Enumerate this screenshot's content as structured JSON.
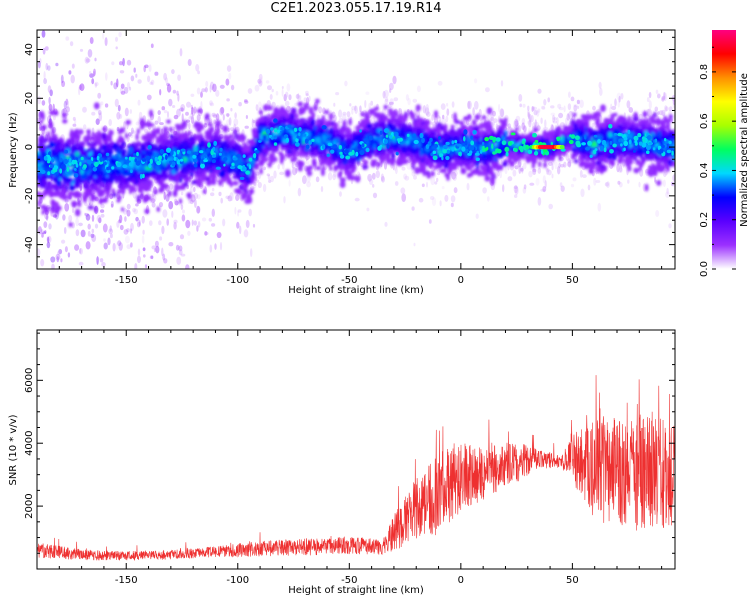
{
  "title": "C2E1.2023.055.17.19.R14",
  "chart_data": [
    {
      "type": "heatmap",
      "xlabel": "Height of straight line (km)",
      "ylabel": "Frequency (Hz)",
      "xlim": [
        -190,
        96
      ],
      "ylim": [
        -50,
        48
      ],
      "x_ticks": [
        -150,
        -100,
        -50,
        0,
        50
      ],
      "y_ticks": [
        -40,
        -20,
        0,
        20,
        40
      ],
      "colorbar": {
        "label": "Normalized spectral amplitude",
        "range": [
          0,
          0.97
        ],
        "ticks": [
          0.0,
          0.2,
          0.4,
          0.6,
          0.8
        ],
        "colormap": "rainbow",
        "colors": [
          "#ffffff",
          "#9b30ff",
          "#5a00ff",
          "#0000ff",
          "#00d8ff",
          "#00ff60",
          "#a8ff00",
          "#ffff00",
          "#ff9000",
          "#ff0000",
          "#ff0080"
        ]
      },
      "ridge": [
        {
          "x": -190,
          "y": -7
        },
        {
          "x": -170,
          "y": -8
        },
        {
          "x": -150,
          "y": -7
        },
        {
          "x": -130,
          "y": -5
        },
        {
          "x": -110,
          "y": -3
        },
        {
          "x": -100,
          "y": -6
        },
        {
          "x": -95,
          "y": -10
        },
        {
          "x": -90,
          "y": 4
        },
        {
          "x": -80,
          "y": 6
        },
        {
          "x": -70,
          "y": 4
        },
        {
          "x": -60,
          "y": 2
        },
        {
          "x": -50,
          "y": -2
        },
        {
          "x": -40,
          "y": 3
        },
        {
          "x": -30,
          "y": 4
        },
        {
          "x": -20,
          "y": 2
        },
        {
          "x": -10,
          "y": -1
        },
        {
          "x": 0,
          "y": 0
        },
        {
          "x": 10,
          "y": -1
        },
        {
          "x": 20,
          "y": 1
        },
        {
          "x": 30,
          "y": 0
        },
        {
          "x": 40,
          "y": 0
        },
        {
          "x": 50,
          "y": 4
        },
        {
          "x": 60,
          "y": 1
        },
        {
          "x": 70,
          "y": 3
        },
        {
          "x": 80,
          "y": 2
        },
        {
          "x": 96,
          "y": 0
        }
      ],
      "peak_region": {
        "x": [
          32,
          46
        ],
        "y": 0,
        "value": 0.95
      }
    },
    {
      "type": "line",
      "xlabel": "Height of straight line (km)",
      "ylabel": "SNR (10 * v/v)",
      "xlim": [
        -190,
        96
      ],
      "ylim": [
        0,
        7600
      ],
      "x_ticks": [
        -150,
        -100,
        -50,
        0,
        50
      ],
      "y_ticks": [
        2000,
        4000,
        6000
      ],
      "color": "#ee3030",
      "envelope": [
        {
          "x": -190,
          "base": 600,
          "spread": 500
        },
        {
          "x": -170,
          "base": 450,
          "spread": 350
        },
        {
          "x": -150,
          "base": 420,
          "spread": 300
        },
        {
          "x": -130,
          "base": 450,
          "spread": 300
        },
        {
          "x": -110,
          "base": 550,
          "spread": 350
        },
        {
          "x": -90,
          "base": 650,
          "spread": 500
        },
        {
          "x": -70,
          "base": 700,
          "spread": 550
        },
        {
          "x": -50,
          "base": 750,
          "spread": 550
        },
        {
          "x": -35,
          "base": 700,
          "spread": 500
        },
        {
          "x": -28,
          "base": 1300,
          "spread": 1400
        },
        {
          "x": -20,
          "base": 1900,
          "spread": 2000
        },
        {
          "x": -10,
          "base": 2400,
          "spread": 2600
        },
        {
          "x": 0,
          "base": 2900,
          "spread": 2200
        },
        {
          "x": 10,
          "base": 3100,
          "spread": 1800
        },
        {
          "x": 25,
          "base": 3400,
          "spread": 1300
        },
        {
          "x": 35,
          "base": 3500,
          "spread": 600
        },
        {
          "x": 45,
          "base": 3400,
          "spread": 400
        },
        {
          "x": 50,
          "base": 3500,
          "spread": 1500
        },
        {
          "x": 60,
          "base": 3200,
          "spread": 3400
        },
        {
          "x": 75,
          "base": 3000,
          "spread": 3500
        },
        {
          "x": 85,
          "base": 3100,
          "spread": 3900
        },
        {
          "x": 96,
          "base": 2900,
          "spread": 3300
        }
      ]
    }
  ]
}
